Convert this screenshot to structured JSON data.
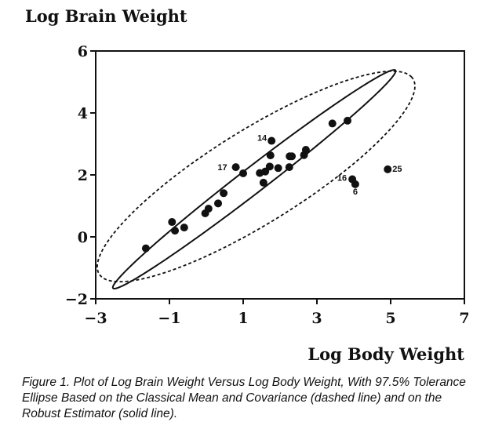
{
  "chart_data": {
    "type": "scatter",
    "title": "",
    "ylabel": "Log Brain Weight",
    "xlabel": "Log Body Weight",
    "xlim": [
      -3,
      7
    ],
    "ylim": [
      -2,
      6
    ],
    "xticks": [
      {
        "value": -3,
        "label": "−3"
      },
      {
        "value": -1,
        "label": "−1"
      },
      {
        "value": 1,
        "label": "1"
      },
      {
        "value": 3,
        "label": "3"
      },
      {
        "value": 5,
        "label": "5"
      },
      {
        "value": 7,
        "label": "7"
      }
    ],
    "yticks": [
      {
        "value": -2,
        "label": "−2"
      },
      {
        "value": 0,
        "label": "0"
      },
      {
        "value": 2,
        "label": "2"
      },
      {
        "value": 4,
        "label": "4"
      },
      {
        "value": 6,
        "label": "6"
      }
    ],
    "grid": false,
    "points": [
      {
        "x": -1.64,
        "y": -0.37,
        "label": ""
      },
      {
        "x": -0.93,
        "y": 0.48,
        "label": ""
      },
      {
        "x": -0.85,
        "y": 0.2,
        "label": ""
      },
      {
        "x": -0.6,
        "y": 0.3,
        "label": ""
      },
      {
        "x": -0.03,
        "y": 0.76,
        "label": ""
      },
      {
        "x": 0.06,
        "y": 0.91,
        "label": ""
      },
      {
        "x": 0.32,
        "y": 1.08,
        "label": ""
      },
      {
        "x": 0.47,
        "y": 1.41,
        "label": ""
      },
      {
        "x": 0.8,
        "y": 2.25,
        "label": "17"
      },
      {
        "x": 1.0,
        "y": 2.05,
        "label": ""
      },
      {
        "x": 1.45,
        "y": 2.06,
        "label": ""
      },
      {
        "x": 1.55,
        "y": 1.75,
        "label": ""
      },
      {
        "x": 1.6,
        "y": 2.11,
        "label": ""
      },
      {
        "x": 1.72,
        "y": 2.27,
        "label": ""
      },
      {
        "x": 1.74,
        "y": 2.63,
        "label": ""
      },
      {
        "x": 1.77,
        "y": 3.1,
        "label": "14"
      },
      {
        "x": 1.95,
        "y": 2.22,
        "label": ""
      },
      {
        "x": 2.25,
        "y": 2.25,
        "label": ""
      },
      {
        "x": 2.26,
        "y": 2.6,
        "label": ""
      },
      {
        "x": 2.32,
        "y": 2.6,
        "label": ""
      },
      {
        "x": 2.65,
        "y": 2.64,
        "label": ""
      },
      {
        "x": 2.7,
        "y": 2.81,
        "label": ""
      },
      {
        "x": 3.42,
        "y": 3.66,
        "label": ""
      },
      {
        "x": 3.83,
        "y": 3.75,
        "label": ""
      },
      {
        "x": 3.96,
        "y": 1.86,
        "label": "16"
      },
      {
        "x": 4.04,
        "y": 1.7,
        "label": "6"
      },
      {
        "x": 4.92,
        "y": 2.18,
        "label": "25"
      }
    ],
    "ellipses": [
      {
        "name": "Classical Mean and Covariance",
        "style": "dashed",
        "cx": 1.35,
        "cy": 1.95,
        "a": 5.3,
        "b": 1.42,
        "angle_deg": 37.2
      },
      {
        "name": "Robust Estimator",
        "style": "solid",
        "cx": 1.3,
        "cy": 1.86,
        "a": 5.2,
        "b": 0.38,
        "angle_deg": 42.6
      }
    ]
  },
  "caption": "Figure 1. Plot of Log Brain Weight Versus Log Body Weight, With 97.5% Tolerance Ellipse Based on the Classical Mean and Covariance (dashed line) and on the Robust Estimator (solid line)."
}
